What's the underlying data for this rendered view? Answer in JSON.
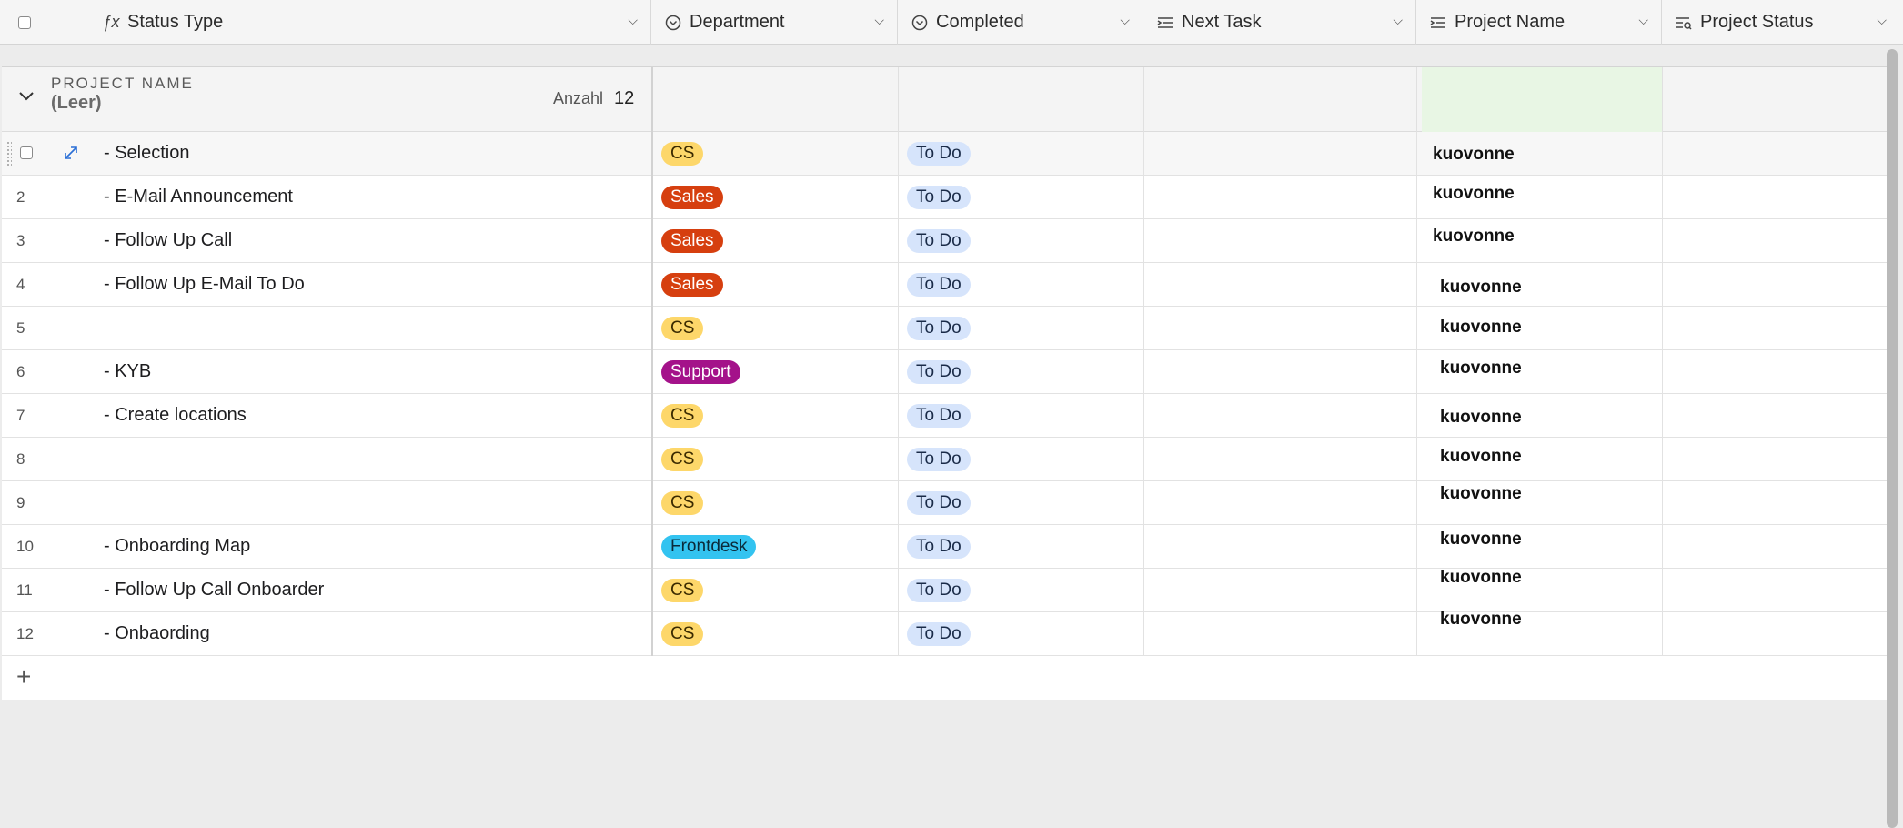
{
  "header": {
    "status_type": "Status Type",
    "department": "Department",
    "completed": "Completed",
    "next_task": "Next Task",
    "project_name": "Project Name",
    "project_status": "Project Status"
  },
  "group": {
    "label": "PROJECT NAME",
    "value": "(Leer)",
    "count_label": "Anzahl",
    "count": "12"
  },
  "rows": [
    {
      "num": "",
      "title": "- Selection",
      "dept": "CS",
      "completed": "To Do",
      "project": "kuovonne"
    },
    {
      "num": "2",
      "title": "- E-Mail Announcement",
      "dept": "Sales",
      "completed": "To Do",
      "project": "kuovonne"
    },
    {
      "num": "3",
      "title": "- Follow Up Call",
      "dept": "Sales",
      "completed": "To Do",
      "project": "kuovonne"
    },
    {
      "num": "4",
      "title": "- Follow Up E-Mail To Do",
      "dept": "Sales",
      "completed": "To Do",
      "project": "kuovonne"
    },
    {
      "num": "5",
      "title": "",
      "dept": "CS",
      "completed": "To Do",
      "project": "kuovonne"
    },
    {
      "num": "6",
      "title": "- KYB",
      "dept": "Support",
      "completed": "To Do",
      "project": "kuovonne"
    },
    {
      "num": "7",
      "title": "- Create locations",
      "dept": "CS",
      "completed": "To Do",
      "project": "kuovonne"
    },
    {
      "num": "8",
      "title": "",
      "dept": "CS",
      "completed": "To Do",
      "project": "kuovonne"
    },
    {
      "num": "9",
      "title": "",
      "dept": "CS",
      "completed": "To Do",
      "project": "kuovonne"
    },
    {
      "num": "10",
      "title": "- Onboarding Map",
      "dept": "Frontdesk",
      "completed": "To Do",
      "project": "kuovonne"
    },
    {
      "num": "11",
      "title": "- Follow Up Call Onboarder",
      "dept": "CS",
      "completed": "To Do",
      "project": "kuovonne"
    },
    {
      "num": "12",
      "title": "- Onbaording",
      "dept": "CS",
      "completed": "To Do",
      "project": "kuovonne"
    }
  ],
  "icons": {
    "status_type": "formula-icon",
    "department": "single-select-icon",
    "completed": "single-select-icon",
    "next_task": "lookup-icon",
    "project_name": "lookup-icon",
    "project_status": "rollup-icon",
    "expand": "expand-icon",
    "add": "plus-icon",
    "collapse": "chevron-down-icon"
  },
  "colors": {
    "cs": "#fdd76a",
    "sales": "#d63f0f",
    "support": "#a4128a",
    "frontdesk": "#33c3f0",
    "todo": "#d6e4fb",
    "project_bg": "#e6f9e2"
  }
}
